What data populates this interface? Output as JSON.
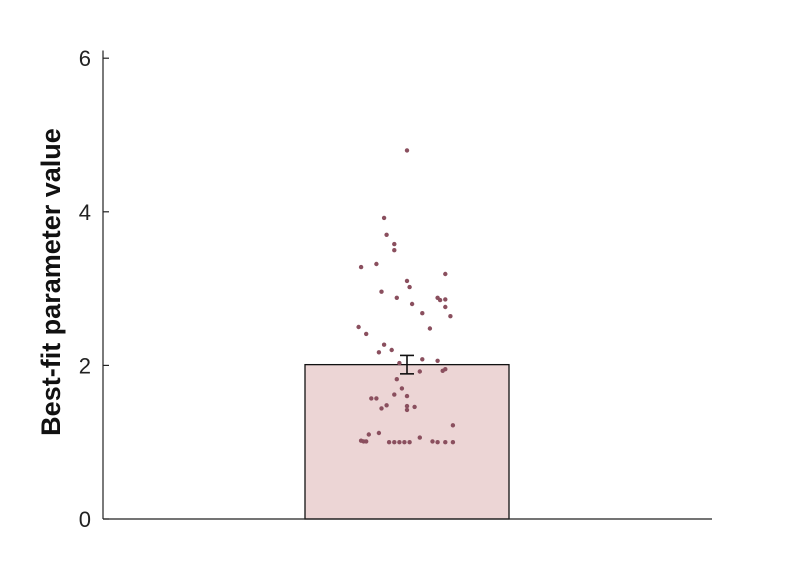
{
  "chart_data": {
    "type": "bar",
    "title": "",
    "xlabel": "",
    "ylabel": "Best-fit parameter value",
    "ylim": [
      0,
      6.1
    ],
    "yticks": [
      0,
      2,
      4,
      6
    ],
    "categories": [
      ""
    ],
    "values": [
      2.01
    ],
    "error": [
      0.12
    ],
    "grid": false,
    "colors": {
      "bar_fill": "#ecd5d5",
      "bar_edge": "#111111",
      "points": "#8a4f5e",
      "axis": "#222222"
    },
    "points": [
      {
        "x": 0.0,
        "y": 4.8
      },
      {
        "x": -0.09,
        "y": 3.92
      },
      {
        "x": -0.08,
        "y": 3.7
      },
      {
        "x": -0.05,
        "y": 3.58
      },
      {
        "x": -0.05,
        "y": 3.5
      },
      {
        "x": -0.12,
        "y": 3.32
      },
      {
        "x": -0.18,
        "y": 3.28
      },
      {
        "x": 0.15,
        "y": 3.19
      },
      {
        "x": 0.0,
        "y": 3.1
      },
      {
        "x": 0.01,
        "y": 3.02
      },
      {
        "x": -0.1,
        "y": 2.96
      },
      {
        "x": -0.04,
        "y": 2.88
      },
      {
        "x": 0.12,
        "y": 2.88
      },
      {
        "x": 0.13,
        "y": 2.85
      },
      {
        "x": 0.15,
        "y": 2.86
      },
      {
        "x": 0.02,
        "y": 2.8
      },
      {
        "x": 0.15,
        "y": 2.76
      },
      {
        "x": 0.06,
        "y": 2.68
      },
      {
        "x": 0.17,
        "y": 2.64
      },
      {
        "x": -0.19,
        "y": 2.5
      },
      {
        "x": 0.09,
        "y": 2.48
      },
      {
        "x": -0.16,
        "y": 2.41
      },
      {
        "x": -0.09,
        "y": 2.27
      },
      {
        "x": -0.06,
        "y": 2.2
      },
      {
        "x": -0.11,
        "y": 2.17
      },
      {
        "x": 0.06,
        "y": 2.08
      },
      {
        "x": 0.12,
        "y": 2.06
      },
      {
        "x": -0.03,
        "y": 2.03
      },
      {
        "x": 0.15,
        "y": 1.95
      },
      {
        "x": 0.14,
        "y": 1.93
      },
      {
        "x": 0.05,
        "y": 1.92
      },
      {
        "x": -0.04,
        "y": 1.82
      },
      {
        "x": -0.02,
        "y": 1.7
      },
      {
        "x": -0.05,
        "y": 1.62
      },
      {
        "x": 0.0,
        "y": 1.6
      },
      {
        "x": -0.14,
        "y": 1.57
      },
      {
        "x": -0.12,
        "y": 1.57
      },
      {
        "x": -0.08,
        "y": 1.48
      },
      {
        "x": 0.0,
        "y": 1.47
      },
      {
        "x": 0.03,
        "y": 1.46
      },
      {
        "x": -0.1,
        "y": 1.44
      },
      {
        "x": 0.0,
        "y": 1.42
      },
      {
        "x": 0.18,
        "y": 1.22
      },
      {
        "x": -0.11,
        "y": 1.12
      },
      {
        "x": -0.15,
        "y": 1.1
      },
      {
        "x": 0.05,
        "y": 1.06
      },
      {
        "x": -0.18,
        "y": 1.02
      },
      {
        "x": -0.17,
        "y": 1.01
      },
      {
        "x": -0.16,
        "y": 1.01
      },
      {
        "x": -0.07,
        "y": 1.0
      },
      {
        "x": -0.05,
        "y": 1.0
      },
      {
        "x": -0.03,
        "y": 1.0
      },
      {
        "x": -0.01,
        "y": 1.0
      },
      {
        "x": 0.01,
        "y": 1.0
      },
      {
        "x": 0.1,
        "y": 1.01
      },
      {
        "x": 0.12,
        "y": 1.0
      },
      {
        "x": 0.15,
        "y": 1.0
      },
      {
        "x": 0.18,
        "y": 1.0
      }
    ]
  }
}
